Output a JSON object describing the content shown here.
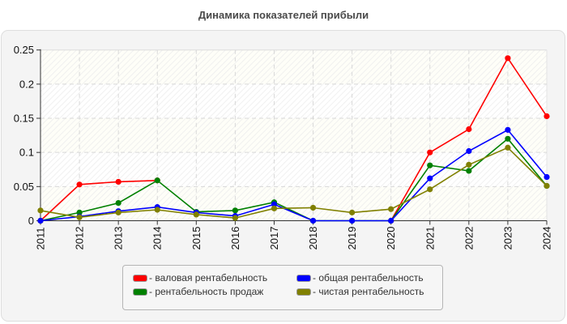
{
  "chart_data": {
    "type": "line",
    "title": "Динамика показателей прибыли",
    "xlabel": "",
    "ylabel": "",
    "categories": [
      "2011",
      "2012",
      "2013",
      "2014",
      "2015",
      "2016",
      "2017",
      "2018",
      "2019",
      "2020",
      "2021",
      "2022",
      "2023",
      "2024"
    ],
    "yticks": [
      "0",
      "0.05",
      "0.1",
      "0.15",
      "0.2",
      "0.25"
    ],
    "ylim": [
      0,
      0.25
    ],
    "grid": true,
    "legend_position": "bottom",
    "series": [
      {
        "name": "валовая рентабельность",
        "color": "#ff0000",
        "values": [
          0,
          0.053,
          0.057,
          0.059,
          null,
          null,
          null,
          null,
          null,
          0,
          0.1,
          0.134,
          0.238,
          0.153
        ]
      },
      {
        "name": "рентабельность продаж",
        "color": "#008000",
        "values": [
          0,
          0.012,
          0.026,
          0.059,
          0.013,
          0.015,
          0.027,
          0,
          0,
          0,
          0.081,
          0.073,
          0.12,
          0.051
        ]
      },
      {
        "name": "общая рентабельность",
        "color": "#0000ff",
        "values": [
          0,
          0.006,
          0.014,
          0.02,
          0.012,
          0.007,
          0.024,
          0,
          0,
          0,
          0.062,
          0.102,
          0.133,
          0.064
        ]
      },
      {
        "name": "чистая рентабельность",
        "color": "#808000",
        "values": [
          0.015,
          0.005,
          0.012,
          0.016,
          0.009,
          0.004,
          0.018,
          0.019,
          0.012,
          0.017,
          0.046,
          0.082,
          0.107,
          0.051
        ]
      }
    ]
  },
  "legend": {
    "items": [
      {
        "label": "- валовая рентабельность",
        "color": "#ff0000"
      },
      {
        "label": "- общая рентабельность",
        "color": "#0000ff"
      },
      {
        "label": "- рентабельность продаж",
        "color": "#008000"
      },
      {
        "label": "- чистая рентабельность",
        "color": "#808000"
      }
    ]
  }
}
